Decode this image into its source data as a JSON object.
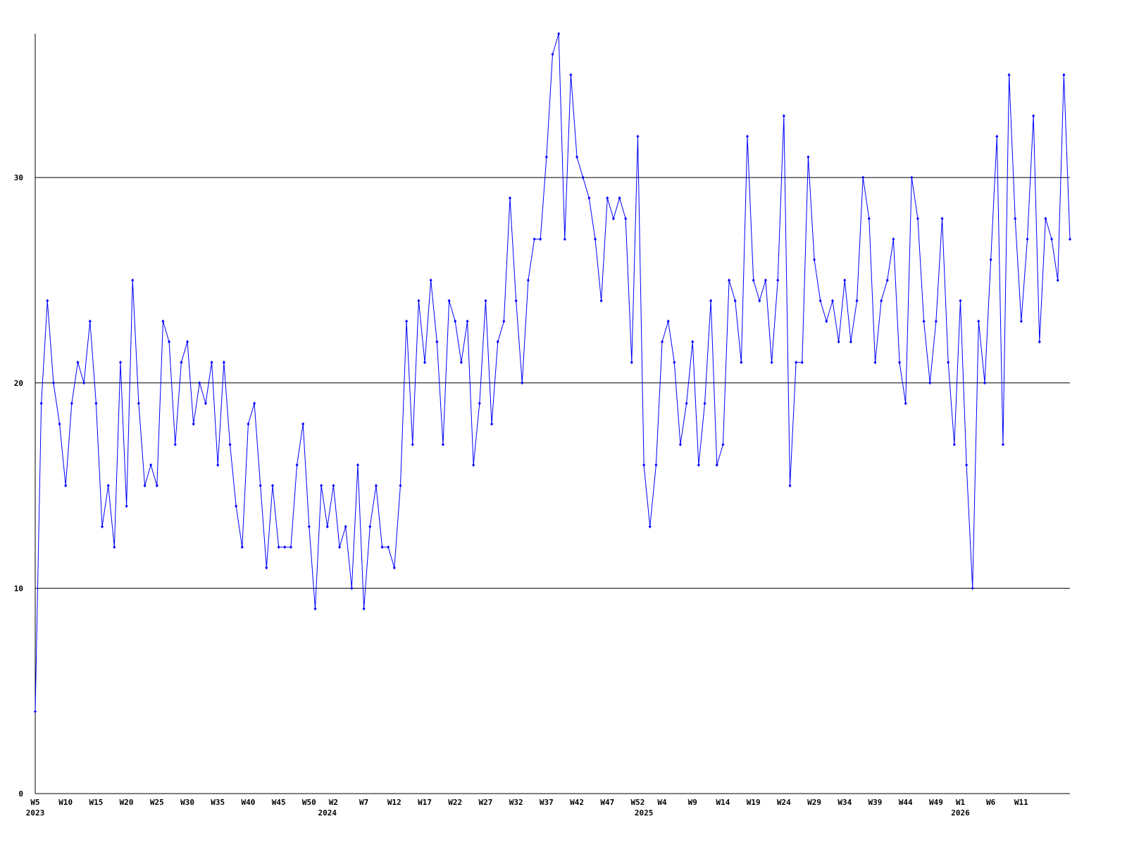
{
  "chart_data": {
    "type": "line",
    "categories": [
      "W5",
      null,
      null,
      null,
      null,
      "W10",
      null,
      null,
      null,
      null,
      "W15",
      null,
      null,
      null,
      null,
      "W20",
      null,
      null,
      null,
      null,
      "W25",
      null,
      null,
      null,
      null,
      "W30",
      null,
      null,
      null,
      null,
      "W35",
      null,
      null,
      null,
      null,
      "W40",
      null,
      null,
      null,
      null,
      "W45",
      null,
      null,
      null,
      null,
      "W50",
      null,
      null,
      null,
      "W2",
      null,
      null,
      null,
      null,
      "W7",
      null,
      null,
      null,
      null,
      "W12",
      null,
      null,
      null,
      null,
      "W17",
      null,
      null,
      null,
      null,
      "W22",
      null,
      null,
      null,
      null,
      "W27",
      null,
      null,
      null,
      null,
      "W32",
      null,
      null,
      null,
      null,
      "W37",
      null,
      null,
      null,
      null,
      "W42",
      null,
      null,
      null,
      null,
      "W47",
      null,
      null,
      null,
      null,
      "W52",
      null,
      null,
      null,
      "W4",
      null,
      null,
      null,
      null,
      "W9",
      null,
      null,
      null,
      null,
      "W14",
      null,
      null,
      null,
      null,
      "W19",
      null,
      null,
      null,
      null,
      "W24",
      null,
      null,
      null,
      null,
      "W29",
      null,
      null,
      null,
      null,
      "W34",
      null,
      null,
      null,
      null,
      "W39",
      null,
      null,
      null,
      null,
      "W44",
      null,
      null,
      null,
      null,
      "W49",
      null,
      null,
      null,
      "W1",
      null,
      null,
      null,
      null,
      "W6",
      null,
      null,
      null,
      null,
      "W11",
      null,
      null,
      null,
      null,
      null,
      null,
      null,
      null
    ],
    "year_labels": [
      {
        "category_index": 0,
        "label": "2023"
      },
      {
        "category_index": 48,
        "label": "2024"
      },
      {
        "category_index": 100,
        "label": "2025"
      },
      {
        "category_index": 152,
        "label": "2026"
      }
    ],
    "series": [
      {
        "color": "#0000ff",
        "values": [
          4,
          19,
          24,
          20,
          18,
          15,
          19,
          21,
          20,
          23,
          19,
          13,
          15,
          12,
          21,
          14,
          25,
          19,
          15,
          16,
          15,
          23,
          22,
          17,
          21,
          22,
          18,
          20,
          19,
          21,
          16,
          21,
          17,
          14,
          12,
          18,
          19,
          15,
          11,
          15,
          12,
          12,
          12,
          16,
          18,
          13,
          9,
          15,
          13,
          15,
          12,
          13,
          10,
          16,
          9,
          13,
          15,
          12,
          12,
          11,
          15,
          23,
          17,
          24,
          21,
          25,
          22,
          17,
          24,
          23,
          21,
          23,
          16,
          19,
          24,
          18,
          22,
          23,
          29,
          24,
          20,
          25,
          27,
          27,
          31,
          36,
          37,
          27,
          35,
          31,
          30,
          29,
          27,
          24,
          29,
          28,
          29,
          28,
          21,
          32,
          16,
          13,
          16,
          22,
          23,
          21,
          17,
          19,
          22,
          16,
          19,
          24,
          16,
          17,
          25,
          24,
          21,
          32,
          25,
          24,
          25,
          21,
          25,
          33,
          15,
          21,
          21,
          31,
          26,
          24,
          23,
          24,
          22,
          25,
          22,
          24,
          30,
          28,
          21,
          24,
          25,
          27,
          21,
          19,
          30,
          28,
          23,
          20,
          23,
          28,
          21,
          17,
          24,
          16,
          10,
          23,
          20,
          26,
          32,
          17,
          35,
          28,
          23,
          27,
          33,
          22,
          28,
          27,
          25,
          35,
          27
        ]
      }
    ],
    "ylim": [
      0,
      37
    ],
    "yticks": [
      0,
      10,
      20,
      30
    ],
    "grid": true
  }
}
